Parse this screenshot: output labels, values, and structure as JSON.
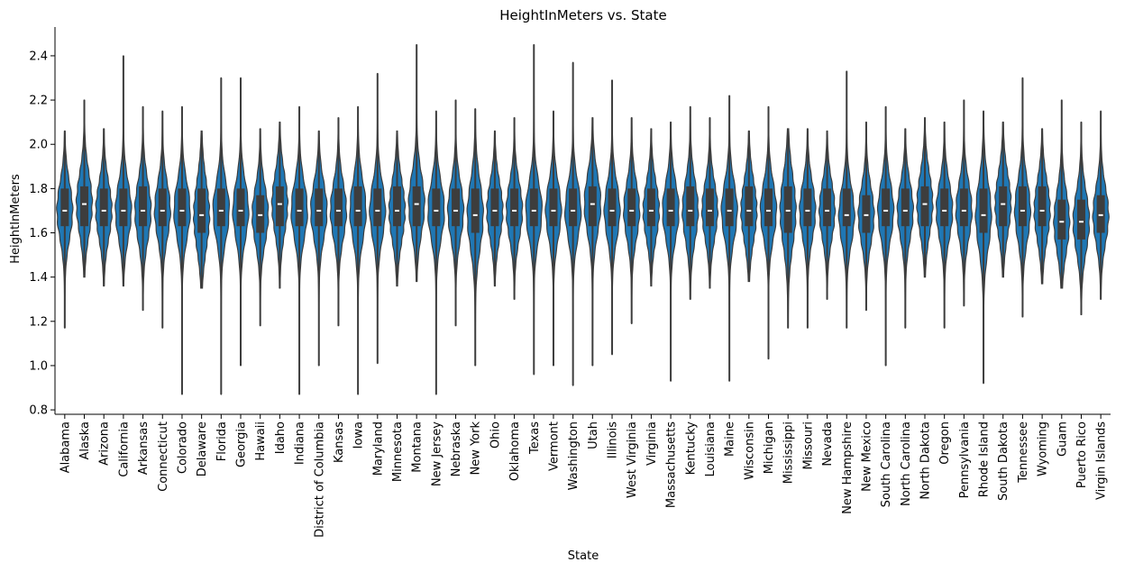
{
  "chart_data": {
    "type": "violin",
    "title": "HeightInMeters vs. State",
    "xlabel": "State",
    "ylabel": "HeightInMeters",
    "ylim": [
      0.78,
      2.53
    ],
    "yticks": [
      0.8,
      1.0,
      1.2,
      1.4,
      1.6,
      1.8,
      2.0,
      2.2,
      2.4
    ],
    "series": [
      {
        "state": "Alabama",
        "min": 1.17,
        "max": 2.06,
        "q1": 1.63,
        "median": 1.7,
        "q3": 1.8
      },
      {
        "state": "Alaska",
        "min": 1.4,
        "max": 2.2,
        "q1": 1.63,
        "median": 1.73,
        "q3": 1.81
      },
      {
        "state": "Arizona",
        "min": 1.36,
        "max": 2.07,
        "q1": 1.63,
        "median": 1.7,
        "q3": 1.8
      },
      {
        "state": "California",
        "min": 1.36,
        "max": 2.4,
        "q1": 1.63,
        "median": 1.7,
        "q3": 1.8
      },
      {
        "state": "Arkansas",
        "min": 1.25,
        "max": 2.17,
        "q1": 1.63,
        "median": 1.7,
        "q3": 1.81
      },
      {
        "state": "Connecticut",
        "min": 1.17,
        "max": 2.15,
        "q1": 1.63,
        "median": 1.7,
        "q3": 1.8
      },
      {
        "state": "Colorado",
        "min": 0.87,
        "max": 2.17,
        "q1": 1.63,
        "median": 1.7,
        "q3": 1.8
      },
      {
        "state": "Delaware",
        "min": 1.35,
        "max": 2.06,
        "q1": 1.6,
        "median": 1.68,
        "q3": 1.8
      },
      {
        "state": "Florida",
        "min": 0.87,
        "max": 2.3,
        "q1": 1.63,
        "median": 1.7,
        "q3": 1.8
      },
      {
        "state": "Georgia",
        "min": 1.0,
        "max": 2.3,
        "q1": 1.63,
        "median": 1.7,
        "q3": 1.8
      },
      {
        "state": "Hawaii",
        "min": 1.18,
        "max": 2.07,
        "q1": 1.6,
        "median": 1.68,
        "q3": 1.77
      },
      {
        "state": "Idaho",
        "min": 1.35,
        "max": 2.1,
        "q1": 1.63,
        "median": 1.73,
        "q3": 1.81
      },
      {
        "state": "Indiana",
        "min": 0.87,
        "max": 2.17,
        "q1": 1.63,
        "median": 1.7,
        "q3": 1.8
      },
      {
        "state": "District of Columbia",
        "min": 1.0,
        "max": 2.06,
        "q1": 1.63,
        "median": 1.7,
        "q3": 1.8
      },
      {
        "state": "Kansas",
        "min": 1.18,
        "max": 2.12,
        "q1": 1.63,
        "median": 1.7,
        "q3": 1.8
      },
      {
        "state": "Iowa",
        "min": 0.87,
        "max": 2.17,
        "q1": 1.63,
        "median": 1.7,
        "q3": 1.81
      },
      {
        "state": "Maryland",
        "min": 1.01,
        "max": 2.32,
        "q1": 1.63,
        "median": 1.7,
        "q3": 1.8
      },
      {
        "state": "Minnesota",
        "min": 1.36,
        "max": 2.06,
        "q1": 1.63,
        "median": 1.7,
        "q3": 1.81
      },
      {
        "state": "Montana",
        "min": 1.38,
        "max": 2.45,
        "q1": 1.63,
        "median": 1.73,
        "q3": 1.81
      },
      {
        "state": "New Jersey",
        "min": 0.87,
        "max": 2.15,
        "q1": 1.63,
        "median": 1.7,
        "q3": 1.8
      },
      {
        "state": "Nebraska",
        "min": 1.18,
        "max": 2.2,
        "q1": 1.63,
        "median": 1.7,
        "q3": 1.8
      },
      {
        "state": "New York",
        "min": 1.0,
        "max": 2.16,
        "q1": 1.6,
        "median": 1.68,
        "q3": 1.8
      },
      {
        "state": "Ohio",
        "min": 1.36,
        "max": 2.06,
        "q1": 1.63,
        "median": 1.7,
        "q3": 1.8
      },
      {
        "state": "Oklahoma",
        "min": 1.3,
        "max": 2.12,
        "q1": 1.63,
        "median": 1.7,
        "q3": 1.8
      },
      {
        "state": "Texas",
        "min": 0.96,
        "max": 2.45,
        "q1": 1.63,
        "median": 1.7,
        "q3": 1.8
      },
      {
        "state": "Vermont",
        "min": 1.0,
        "max": 2.15,
        "q1": 1.63,
        "median": 1.7,
        "q3": 1.8
      },
      {
        "state": "Washington",
        "min": 0.91,
        "max": 2.37,
        "q1": 1.63,
        "median": 1.7,
        "q3": 1.8
      },
      {
        "state": "Utah",
        "min": 1.0,
        "max": 2.12,
        "q1": 1.63,
        "median": 1.73,
        "q3": 1.81
      },
      {
        "state": "Illinois",
        "min": 1.05,
        "max": 2.29,
        "q1": 1.63,
        "median": 1.7,
        "q3": 1.8
      },
      {
        "state": "West Virginia",
        "min": 1.19,
        "max": 2.12,
        "q1": 1.63,
        "median": 1.7,
        "q3": 1.8
      },
      {
        "state": "Virginia",
        "min": 1.36,
        "max": 2.07,
        "q1": 1.63,
        "median": 1.7,
        "q3": 1.8
      },
      {
        "state": "Massachusetts",
        "min": 0.93,
        "max": 2.1,
        "q1": 1.63,
        "median": 1.7,
        "q3": 1.8
      },
      {
        "state": "Kentucky",
        "min": 1.3,
        "max": 2.17,
        "q1": 1.63,
        "median": 1.7,
        "q3": 1.81
      },
      {
        "state": "Louisiana",
        "min": 1.35,
        "max": 2.12,
        "q1": 1.63,
        "median": 1.7,
        "q3": 1.8
      },
      {
        "state": "Maine",
        "min": 0.93,
        "max": 2.22,
        "q1": 1.63,
        "median": 1.7,
        "q3": 1.8
      },
      {
        "state": "Wisconsin",
        "min": 1.38,
        "max": 2.06,
        "q1": 1.63,
        "median": 1.7,
        "q3": 1.81
      },
      {
        "state": "Michigan",
        "min": 1.03,
        "max": 2.17,
        "q1": 1.63,
        "median": 1.7,
        "q3": 1.8
      },
      {
        "state": "Mississippi",
        "min": 1.17,
        "max": 2.07,
        "q1": 1.6,
        "median": 1.7,
        "q3": 1.81
      },
      {
        "state": "Missouri",
        "min": 1.17,
        "max": 2.07,
        "q1": 1.63,
        "median": 1.7,
        "q3": 1.8
      },
      {
        "state": "Nevada",
        "min": 1.3,
        "max": 2.06,
        "q1": 1.63,
        "median": 1.7,
        "q3": 1.8
      },
      {
        "state": "New Hampshire",
        "min": 1.17,
        "max": 2.33,
        "q1": 1.63,
        "median": 1.68,
        "q3": 1.8
      },
      {
        "state": "New Mexico",
        "min": 1.25,
        "max": 2.1,
        "q1": 1.6,
        "median": 1.68,
        "q3": 1.77
      },
      {
        "state": "South Carolina",
        "min": 1.0,
        "max": 2.17,
        "q1": 1.63,
        "median": 1.7,
        "q3": 1.8
      },
      {
        "state": "North Carolina",
        "min": 1.17,
        "max": 2.07,
        "q1": 1.63,
        "median": 1.7,
        "q3": 1.8
      },
      {
        "state": "North Dakota",
        "min": 1.4,
        "max": 2.12,
        "q1": 1.63,
        "median": 1.73,
        "q3": 1.81
      },
      {
        "state": "Oregon",
        "min": 1.17,
        "max": 2.1,
        "q1": 1.63,
        "median": 1.7,
        "q3": 1.8
      },
      {
        "state": "Pennsylvania",
        "min": 1.27,
        "max": 2.2,
        "q1": 1.63,
        "median": 1.7,
        "q3": 1.8
      },
      {
        "state": "Rhode Island",
        "min": 0.92,
        "max": 2.15,
        "q1": 1.6,
        "median": 1.68,
        "q3": 1.8
      },
      {
        "state": "South Dakota",
        "min": 1.4,
        "max": 2.1,
        "q1": 1.63,
        "median": 1.73,
        "q3": 1.81
      },
      {
        "state": "Tennessee",
        "min": 1.22,
        "max": 2.3,
        "q1": 1.63,
        "median": 1.7,
        "q3": 1.81
      },
      {
        "state": "Wyoming",
        "min": 1.37,
        "max": 2.07,
        "q1": 1.63,
        "median": 1.7,
        "q3": 1.81
      },
      {
        "state": "Guam",
        "min": 1.35,
        "max": 2.2,
        "q1": 1.57,
        "median": 1.65,
        "q3": 1.75
      },
      {
        "state": "Puerto Rico",
        "min": 1.23,
        "max": 2.1,
        "q1": 1.57,
        "median": 1.65,
        "q3": 1.75
      },
      {
        "state": "Virgin Islands",
        "min": 1.3,
        "max": 2.15,
        "q1": 1.6,
        "median": 1.68,
        "q3": 1.77
      }
    ]
  }
}
